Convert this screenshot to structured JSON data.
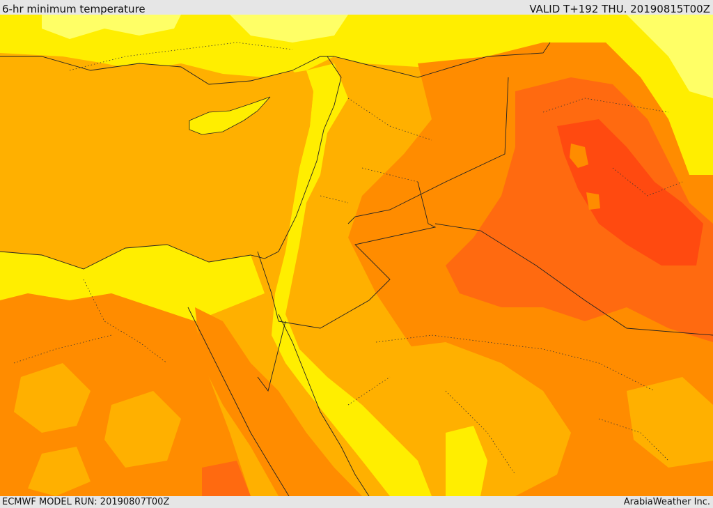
{
  "header": {
    "title": "6-hr minimum temperature",
    "valid_time": "VALID T+192 THU. 20190815T00Z"
  },
  "footer": {
    "model_run": "ECMWF MODEL RUN: 20190807T00Z",
    "credit": "ArabiaWeather Inc."
  },
  "map": {
    "region": "Eastern Mediterranean / Levant / Iraq",
    "colors": {
      "pale_yellow": "#ffff66",
      "yellow": "#ffee00",
      "amber": "#ffb000",
      "orange": "#ff8c00",
      "deep_orange": "#ff6a10",
      "red_orange": "#ff4a10"
    }
  }
}
